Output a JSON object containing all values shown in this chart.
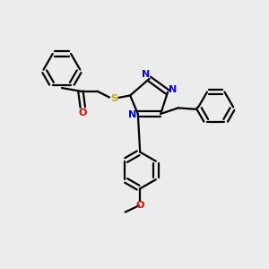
{
  "bg_color": "#ececec",
  "line_color": "#000000",
  "bond_width": 1.6,
  "N_color": "#0000ee",
  "O_color": "#dd0000",
  "S_color": "#ccaa00",
  "figsize": [
    3.0,
    3.0
  ],
  "dpi": 100,
  "xlim": [
    0,
    10
  ],
  "ylim": [
    0,
    10
  ]
}
